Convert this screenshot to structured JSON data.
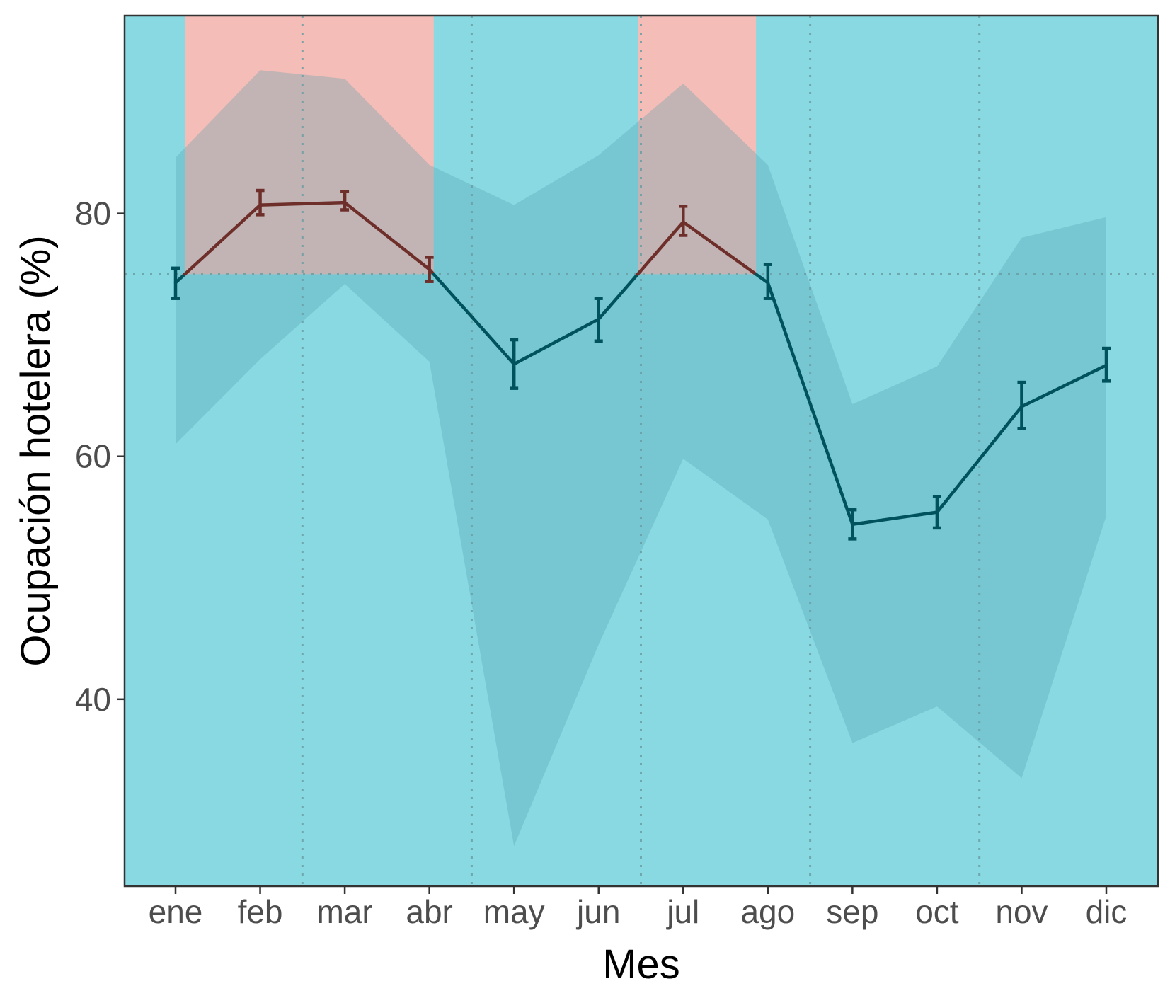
{
  "chart_data": {
    "type": "line",
    "xlabel": "Mes",
    "ylabel": "Ocupación hotelera (%)",
    "categories": [
      "ene",
      "feb",
      "mar",
      "abr",
      "may",
      "jun",
      "jul",
      "ago",
      "sep",
      "oct",
      "nov",
      "dic"
    ],
    "ylim": [
      24.6,
      96.3
    ],
    "yticks": [
      40,
      60,
      80
    ],
    "threshold": 75,
    "series": [
      {
        "values": [
          74.3,
          80.7,
          80.9,
          75.4,
          67.6,
          71.3,
          79.3,
          74.3,
          54.4,
          55.4,
          64.1,
          67.5
        ],
        "error_low": [
          73.0,
          79.9,
          80.3,
          74.4,
          65.6,
          69.5,
          78.2,
          73.0,
          53.2,
          54.1,
          62.3,
          66.2
        ],
        "error_high": [
          75.5,
          81.9,
          81.8,
          76.4,
          69.6,
          73.0,
          80.6,
          75.8,
          55.6,
          56.7,
          66.1,
          68.9
        ],
        "band_low": [
          61.0,
          68.0,
          74.2,
          67.8,
          27.9,
          44.5,
          59.8,
          54.8,
          36.4,
          39.4,
          33.5,
          55.1
        ],
        "band_high": [
          84.6,
          91.8,
          91.1,
          84.0,
          80.7,
          84.8,
          90.7,
          84.0,
          64.3,
          67.4,
          78.0,
          79.7
        ]
      }
    ],
    "grid": false,
    "colors": {
      "above_threshold": "#f4bdb7",
      "below_threshold": "#89d9e2",
      "band_fill": "#4fa0b0",
      "line_above": "#6e2e2a",
      "line_below": "#00525c",
      "divider": "#6b9ea3",
      "panel_border": "#333333"
    }
  }
}
